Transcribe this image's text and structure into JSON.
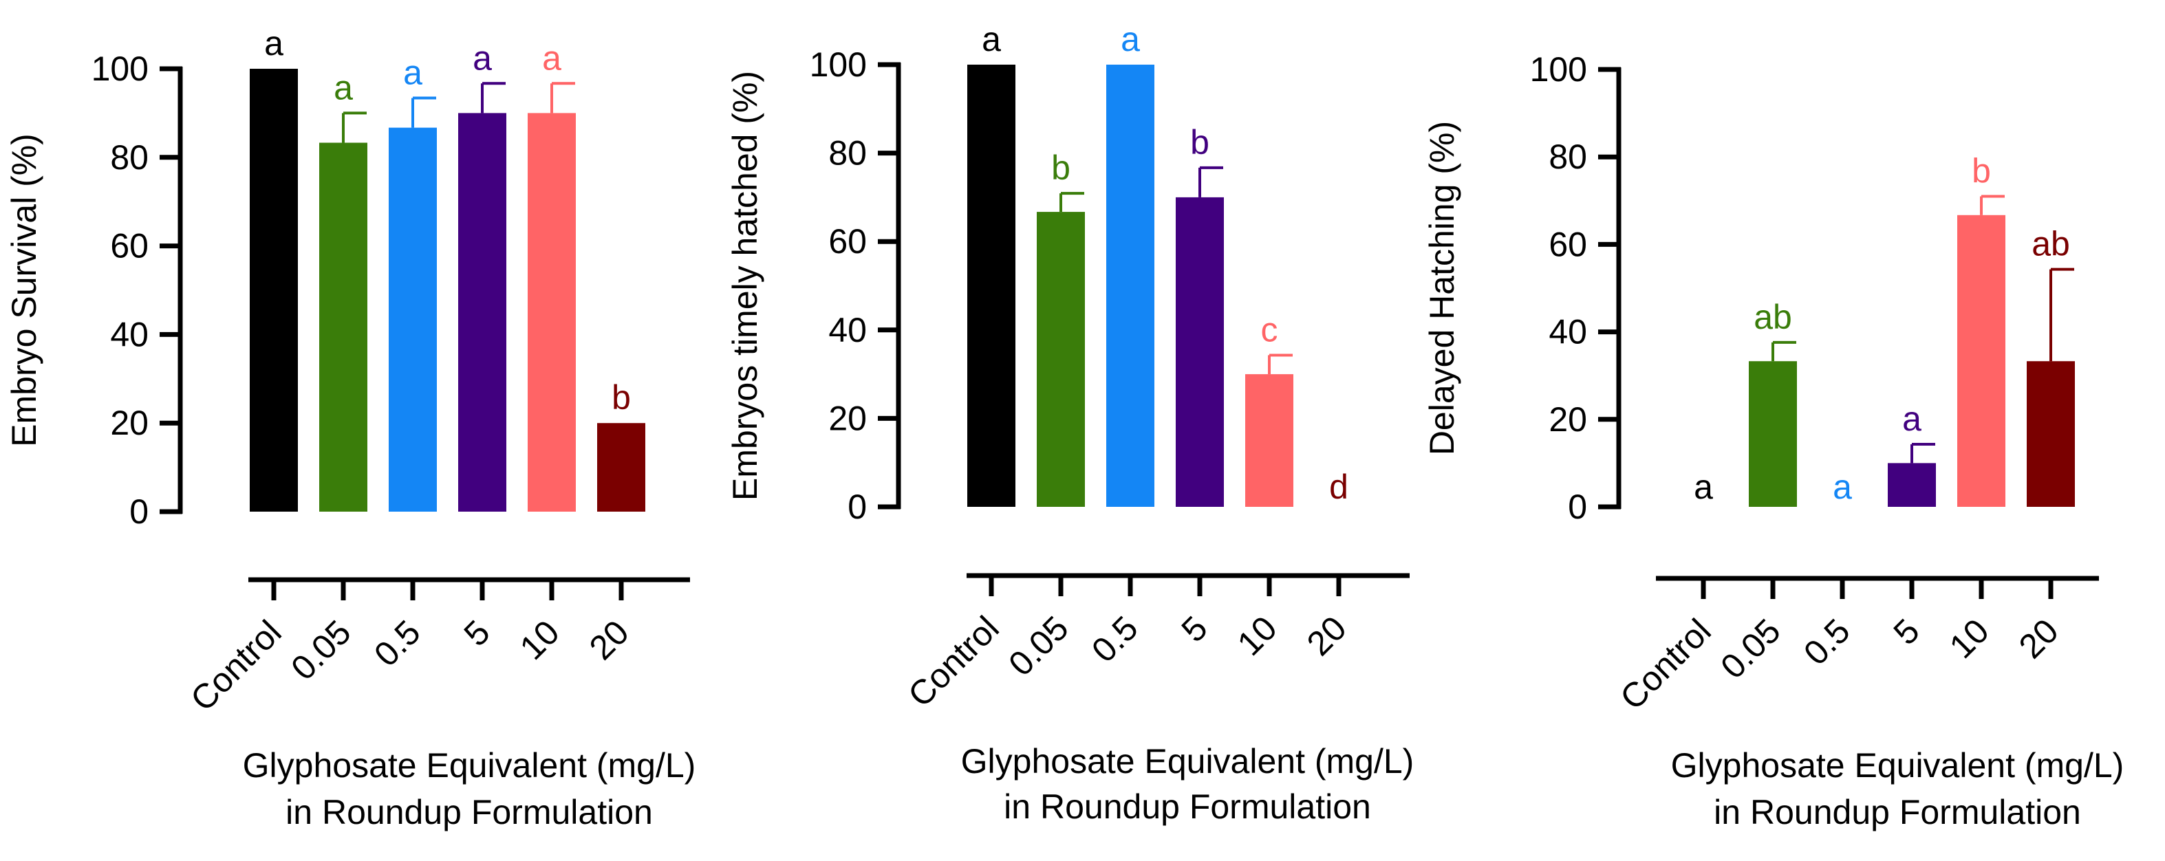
{
  "colors": {
    "axis": "#000000",
    "series": [
      "#000000",
      "#3a7d0a",
      "#1486f5",
      "#41007f",
      "#ff6466",
      "#7a0000"
    ]
  },
  "chart_data": [
    {
      "type": "bar",
      "title": "",
      "ylabel": "Embryo Survival (%)",
      "xlabel": [
        "Glyphosate Equivalent (mg/L)",
        "in Roundup Formulation"
      ],
      "categories": [
        "Control",
        "0.05",
        "0.5",
        "5",
        "10",
        "20"
      ],
      "values": [
        100,
        83.3,
        86.7,
        90,
        90,
        20
      ],
      "errors": [
        0,
        6.7,
        6.7,
        6.7,
        6.7,
        0
      ],
      "letters": [
        "a",
        "a",
        "a",
        "a",
        "a",
        "b"
      ],
      "ylim": [
        0,
        100
      ],
      "yticks": [
        0,
        20,
        40,
        60,
        80,
        100
      ]
    },
    {
      "type": "bar",
      "title": "",
      "ylabel": "Embryos timely hatched  (%)",
      "xlabel": [
        "Glyphosate Equivalent (mg/L)",
        "in Roundup Formulation"
      ],
      "categories": [
        "Control",
        "0.05",
        "0.5",
        "5",
        "10",
        "20"
      ],
      "values": [
        100,
        66.7,
        100,
        70,
        30,
        0
      ],
      "errors": [
        0,
        4.2,
        0,
        6.7,
        4.3,
        0
      ],
      "letters": [
        "a",
        "b",
        "a",
        "b",
        "c",
        "d"
      ],
      "ylim": [
        0,
        100
      ],
      "yticks": [
        0,
        20,
        40,
        60,
        80,
        100
      ]
    },
    {
      "type": "bar",
      "title": "",
      "ylabel": "Delayed Hatching (%)",
      "xlabel": [
        "Glyphosate Equivalent (mg/L)",
        "in Roundup Formulation"
      ],
      "categories": [
        "Control",
        "0.05",
        "0.5",
        "5",
        "10",
        "20"
      ],
      "values": [
        0,
        33.3,
        0,
        10,
        66.7,
        33.3
      ],
      "errors": [
        0,
        4.3,
        0,
        4.3,
        4.3,
        21
      ],
      "letters": [
        "a",
        "ab",
        "a",
        "a",
        "b",
        "ab"
      ],
      "ylim": [
        0,
        100
      ],
      "yticks": [
        0,
        20,
        40,
        60,
        80,
        100
      ]
    }
  ]
}
